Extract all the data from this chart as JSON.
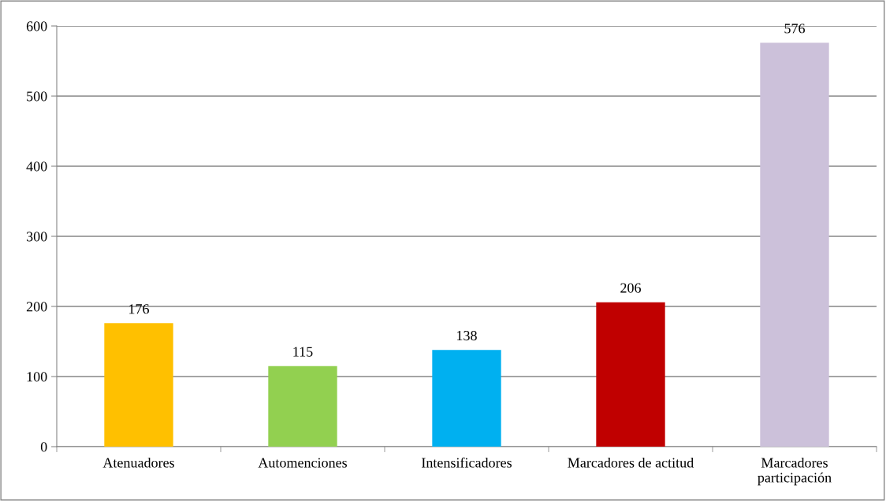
{
  "chart_data": {
    "type": "bar",
    "categories": [
      "Atenuadores",
      "Automenciones",
      "Intensificadores",
      "Marcadores de actitud",
      "Marcadores\nparticipación"
    ],
    "values": [
      176,
      115,
      138,
      206,
      576
    ],
    "colors": [
      "#ffc000",
      "#92d050",
      "#00b0f0",
      "#c00000",
      "#ccc1da"
    ],
    "ylim": [
      0,
      600
    ],
    "yticks": [
      0,
      100,
      200,
      300,
      400,
      500,
      600
    ],
    "grid": "y",
    "data_labels": true,
    "legend": false
  }
}
